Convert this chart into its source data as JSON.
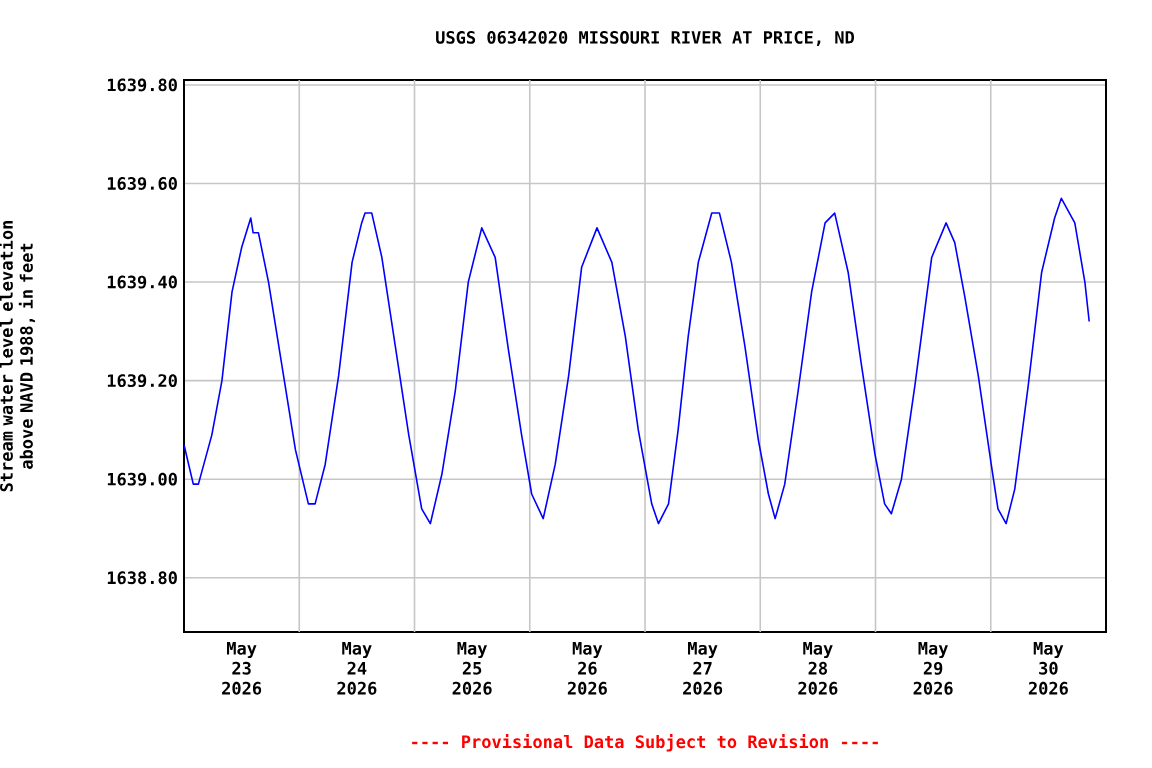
{
  "chart_data": {
    "type": "line",
    "title": "USGS 06342020 MISSOURI RIVER AT PRICE, ND",
    "ylabel": "Stream water level elevation above NAVD 1988, in feet",
    "annotations": [
      "---- Provisional Data Subject to Revision ----"
    ],
    "xlim": [
      "2026-05-23T00:00",
      "2026-05-31T00:00"
    ],
    "xticks": [
      {
        "value": "2026-05-23T12:00",
        "label": "May 23 2026"
      },
      {
        "value": "2026-05-24T12:00",
        "label": "May 24 2026"
      },
      {
        "value": "2026-05-25T12:00",
        "label": "May 25 2026"
      },
      {
        "value": "2026-05-26T12:00",
        "label": "May 26 2026"
      },
      {
        "value": "2026-05-27T12:00",
        "label": "May 27 2026"
      },
      {
        "value": "2026-05-28T12:00",
        "label": "May 28 2026"
      },
      {
        "value": "2026-05-29T12:00",
        "label": "May 29 2026"
      },
      {
        "value": "2026-05-30T12:00",
        "label": "May 30 2026"
      },
      {
        "value": "2026-05-24T00:00",
        "label": null
      },
      {
        "value": "2026-05-25T00:00",
        "label": null
      },
      {
        "value": "2026-05-26T00:00",
        "label": null
      },
      {
        "value": "2026-05-27T00:00",
        "label": null
      },
      {
        "value": "2026-05-28T00:00",
        "label": null
      },
      {
        "value": "2026-05-29T00:00",
        "label": null
      },
      {
        "value": "2026-05-30T00:00",
        "label": null
      }
    ],
    "ylim": [
      1638.69,
      1639.81
    ],
    "yticks": [
      {
        "value": 1638.8,
        "label": "1638.80"
      },
      {
        "value": 1639.0,
        "label": "1639.00"
      },
      {
        "value": 1639.2,
        "label": "1639.20"
      },
      {
        "value": 1639.4,
        "label": "1639.40"
      },
      {
        "value": 1639.6,
        "label": "1639.60"
      },
      {
        "value": 1639.8,
        "label": "1639.80"
      }
    ],
    "grid": true,
    "x": [
      "2026-05-23T00:00",
      "2026-05-23T01:56",
      "2026-05-23T03:00",
      "2026-05-23T05:48",
      "2026-05-23T07:54",
      "2026-05-23T10:00",
      "2026-05-23T12:00",
      "2026-05-23T13:54",
      "2026-05-23T14:24",
      "2026-05-23T15:30",
      "2026-05-23T17:36",
      "2026-05-23T20:24",
      "2026-05-23T23:12",
      "2026-05-24T01:54",
      "2026-05-24T03:18",
      "2026-05-24T05:24",
      "2026-05-24T08:12",
      "2026-05-24T11:00",
      "2026-05-24T13:00",
      "2026-05-24T13:42",
      "2026-05-24T15:06",
      "2026-05-24T17:12",
      "2026-05-24T20:00",
      "2026-05-24T22:48",
      "2026-05-25T01:30",
      "2026-05-25T03:18",
      "2026-05-25T05:42",
      "2026-05-25T08:30",
      "2026-05-25T11:12",
      "2026-05-25T14:00",
      "2026-05-25T16:48",
      "2026-05-25T19:36",
      "2026-05-25T22:18",
      "2026-05-26T00:24",
      "2026-05-26T02:48",
      "2026-05-26T05:18",
      "2026-05-26T08:06",
      "2026-05-26T10:48",
      "2026-05-26T14:00",
      "2026-05-26T17:06",
      "2026-05-26T19:54",
      "2026-05-26T22:36",
      "2026-05-27T01:24",
      "2026-05-27T02:48",
      "2026-05-27T04:54",
      "2026-05-27T06:54",
      "2026-05-27T09:00",
      "2026-05-27T11:06",
      "2026-05-27T13:54",
      "2026-05-27T15:30",
      "2026-05-27T18:00",
      "2026-05-27T20:48",
      "2026-05-27T23:36",
      "2026-05-28T01:42",
      "2026-05-28T03:06",
      "2026-05-28T05:06",
      "2026-05-28T07:54",
      "2026-05-28T10:42",
      "2026-05-28T13:30",
      "2026-05-28T15:30",
      "2026-05-28T18:18",
      "2026-05-28T21:06",
      "2026-05-28T23:54",
      "2026-05-29T01:54",
      "2026-05-29T03:18",
      "2026-05-29T05:24",
      "2026-05-29T08:12",
      "2026-05-29T11:42",
      "2026-05-29T14:42",
      "2026-05-29T16:30",
      "2026-05-29T18:36",
      "2026-05-29T21:24",
      "2026-05-30T00:06",
      "2026-05-30T01:30",
      "2026-05-30T03:12",
      "2026-05-30T05:00",
      "2026-05-30T07:48",
      "2026-05-30T10:36",
      "2026-05-30T13:18",
      "2026-05-30T14:42",
      "2026-05-30T17:30",
      "2026-05-30T19:36",
      "2026-05-30T20:30"
    ],
    "series": [
      {
        "color": "#0000ff",
        "values": [
          1639.07,
          1638.99,
          1638.99,
          1639.09,
          1639.2,
          1639.38,
          1639.47,
          1639.53,
          1639.5,
          1639.5,
          1639.4,
          1639.23,
          1639.06,
          1638.95,
          1638.95,
          1639.03,
          1639.21,
          1639.44,
          1639.52,
          1639.54,
          1639.54,
          1639.45,
          1639.27,
          1639.09,
          1638.94,
          1638.91,
          1639.01,
          1639.18,
          1639.4,
          1639.51,
          1639.45,
          1639.26,
          1639.09,
          1638.97,
          1638.92,
          1639.03,
          1639.21,
          1639.43,
          1639.51,
          1639.44,
          1639.29,
          1639.1,
          1638.95,
          1638.91,
          1638.95,
          1639.1,
          1639.29,
          1639.44,
          1639.54,
          1639.54,
          1639.44,
          1639.27,
          1639.08,
          1638.97,
          1638.92,
          1638.99,
          1639.18,
          1639.38,
          1639.52,
          1639.54,
          1639.42,
          1639.23,
          1639.05,
          1638.95,
          1638.93,
          1639.0,
          1639.19,
          1639.45,
          1639.52,
          1639.48,
          1639.37,
          1639.21,
          1639.03,
          1638.94,
          1638.91,
          1638.98,
          1639.19,
          1639.42,
          1639.53,
          1639.57,
          1639.52,
          1639.4,
          1639.32
        ]
      }
    ]
  }
}
